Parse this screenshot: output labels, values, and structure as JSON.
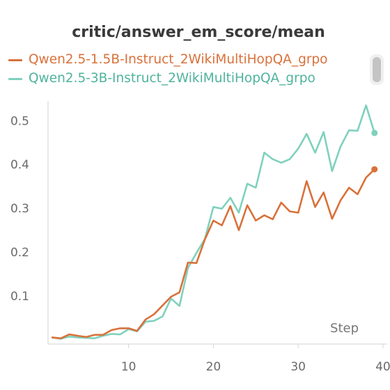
{
  "chart_data": {
    "type": "line",
    "title": "critic/answer_em_score/mean",
    "xlabel": "Step",
    "ylabel": "",
    "xlim": [
      0.5,
      40.5
    ],
    "ylim": [
      -0.01,
      0.545
    ],
    "xticks": [
      "10",
      "20",
      "30",
      "40"
    ],
    "xtick_values": [
      10,
      20,
      30,
      40
    ],
    "yticks": [
      "0.1",
      "0.2",
      "0.3",
      "0.4",
      "0.5"
    ],
    "ytick_values": [
      0.1,
      0.2,
      0.3,
      0.4,
      0.5
    ],
    "legend_position": "top",
    "grid": false,
    "series": [
      {
        "name": "Qwen2.5-1.5B-Instruct_2WikiMultiHopQA_grpo",
        "color": "#d9713a",
        "x": [
          1,
          2,
          3,
          4,
          5,
          6,
          7,
          8,
          9,
          10,
          11,
          12,
          13,
          14,
          15,
          16,
          17,
          18,
          19,
          20,
          21,
          22,
          23,
          24,
          25,
          26,
          27,
          28,
          29,
          30,
          31,
          32,
          33,
          34,
          35,
          36,
          37,
          38,
          39
        ],
        "values": [
          0.005,
          0.003,
          0.012,
          0.009,
          0.006,
          0.011,
          0.011,
          0.022,
          0.026,
          0.026,
          0.02,
          0.046,
          0.058,
          0.078,
          0.098,
          0.108,
          0.176,
          0.175,
          0.229,
          0.272,
          0.261,
          0.305,
          0.25,
          0.307,
          0.272,
          0.284,
          0.275,
          0.313,
          0.293,
          0.29,
          0.362,
          0.303,
          0.336,
          0.276,
          0.318,
          0.347,
          0.332,
          0.37,
          0.389
        ]
      },
      {
        "name": "Qwen2.5-3B-Instruct_2WikiMultiHopQA_grpo",
        "color": "#7fd1bd",
        "x": [
          1,
          2,
          3,
          4,
          5,
          6,
          7,
          8,
          9,
          10,
          11,
          12,
          13,
          14,
          15,
          16,
          17,
          18,
          19,
          20,
          21,
          22,
          23,
          24,
          25,
          26,
          27,
          28,
          29,
          30,
          31,
          32,
          33,
          34,
          35,
          36,
          37,
          38,
          39
        ],
        "values": [
          0.005,
          0.002,
          0.007,
          0.005,
          0.004,
          0.003,
          0.009,
          0.013,
          0.012,
          0.024,
          0.019,
          0.041,
          0.043,
          0.053,
          0.094,
          0.077,
          0.164,
          0.198,
          0.23,
          0.303,
          0.299,
          0.324,
          0.29,
          0.356,
          0.347,
          0.427,
          0.412,
          0.404,
          0.412,
          0.436,
          0.47,
          0.427,
          0.474,
          0.385,
          0.441,
          0.478,
          0.477,
          0.535,
          0.472
        ]
      }
    ]
  }
}
